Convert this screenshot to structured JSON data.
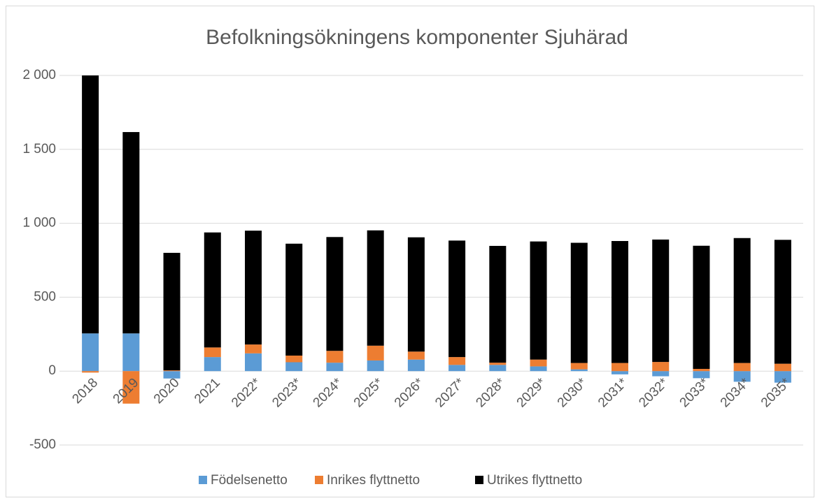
{
  "chart_data": {
    "type": "stacked_bar",
    "title": "Befolkningsökningens komponenter Sjuhärad",
    "categories": [
      "2018",
      "2019",
      "2020",
      "2021",
      "2022*",
      "2023*",
      "2024*",
      "2025*",
      "2026*",
      "2027*",
      "2028*",
      "2029*",
      "2030*",
      "2031*",
      "2032*",
      "2033*",
      "2034*",
      "2035*"
    ],
    "series": [
      {
        "name": "Födelsenetto",
        "color": "#5b9bd5",
        "values": [
          255,
          255,
          -50,
          95,
          120,
          60,
          57,
          72,
          78,
          42,
          42,
          32,
          12,
          -22,
          -35,
          -48,
          -72,
          -78
        ]
      },
      {
        "name": "Inrikes flyttnetto",
        "color": "#ed7d31",
        "values": [
          -10,
          -220,
          5,
          65,
          60,
          45,
          80,
          100,
          54,
          53,
          15,
          46,
          43,
          55,
          62,
          15,
          55,
          50
        ]
      },
      {
        "name": "Utrikes flyttnetto",
        "color": "#000000",
        "values": [
          1745,
          1362,
          795,
          778,
          770,
          757,
          770,
          780,
          773,
          788,
          790,
          799,
          813,
          825,
          828,
          833,
          845,
          838
        ]
      }
    ],
    "ylim": [
      -500,
      2000
    ],
    "yticks": [
      -500,
      0,
      500,
      {
        "value": 1000,
        "label": "1 000"
      },
      {
        "value": 1500,
        "label": "1 500"
      },
      {
        "value": 2000,
        "label": "2 000"
      }
    ],
    "grid": true,
    "legend": "bottom"
  }
}
